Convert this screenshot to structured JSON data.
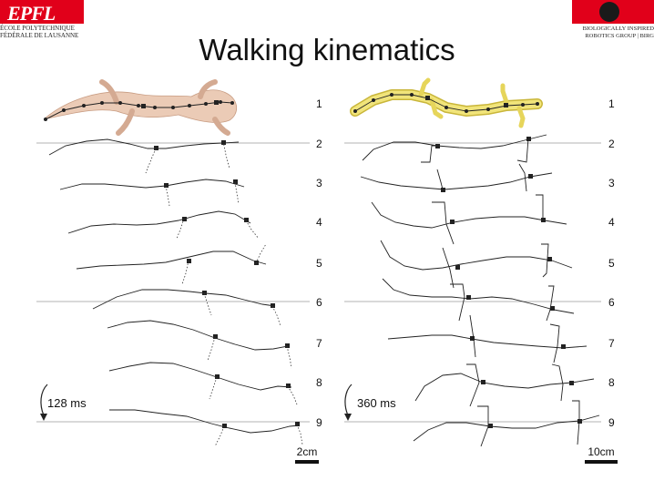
{
  "header": {
    "title": "Walking kinematics",
    "left_logo": {
      "mark": "EPFL",
      "line1": "ÉCOLE POLYTECHNIQUE",
      "line2": "FÉDÉRALE DE LAUSANNE"
    },
    "right_logo": {
      "line1": "BIOLOGICALLY INSPIRED",
      "line2": "ROBOTICS GROUP | BIRG"
    }
  },
  "panels": [
    {
      "id": "left",
      "time_label": "128 ms",
      "scale_label": "2cm",
      "row_labels": [
        "1",
        "2",
        "3",
        "4",
        "5",
        "6",
        "7",
        "8",
        "9"
      ],
      "silhouette_color": "#ebcbb6"
    },
    {
      "id": "right",
      "time_label": "360 ms",
      "scale_label": "10cm",
      "row_labels": [
        "1",
        "2",
        "3",
        "4",
        "5",
        "6",
        "7",
        "8",
        "9"
      ],
      "silhouette_color": "#f1e47a"
    }
  ]
}
